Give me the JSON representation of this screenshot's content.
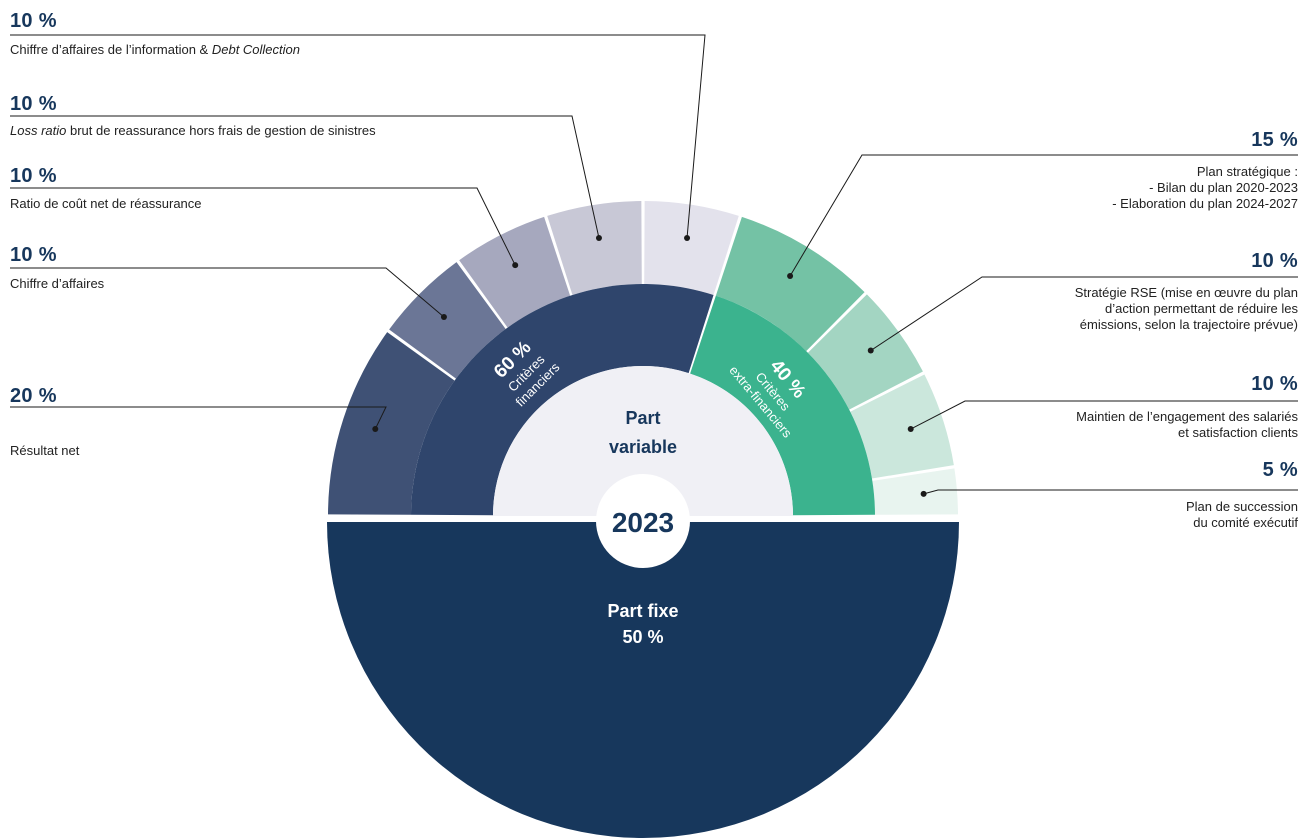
{
  "chart_data": {
    "type": "sunburst",
    "year": "2023",
    "center_label": [
      "Part",
      "variable"
    ],
    "fixed": {
      "label": "Part fixe",
      "value_label": "50 %",
      "value": 50,
      "color": "#17375c"
    },
    "groups": [
      {
        "pct_label": "60 %",
        "label": [
          "Critères",
          "financiers"
        ],
        "value": 60,
        "color": "#2f456c"
      },
      {
        "pct_label": "40 %",
        "label": [
          "Critères",
          "extra-financiers"
        ],
        "value": 40,
        "color": "#3bb38e"
      }
    ],
    "criteria": [
      {
        "group": 0,
        "value": 20,
        "pct_label": "20 %",
        "description": [
          "Résultat net"
        ],
        "color": "#3f5175"
      },
      {
        "group": 0,
        "value": 10,
        "pct_label": "10 %",
        "description": [
          "Chiffre d’affaires"
        ],
        "color": "#6b7696"
      },
      {
        "group": 0,
        "value": 10,
        "pct_label": "10 %",
        "description": [
          "Ratio de coût net de réassurance"
        ],
        "color": "#a6a8be"
      },
      {
        "group": 0,
        "value": 10,
        "pct_label": "10 %",
        "description_prefix_italic": "Loss ratio",
        "description": [
          " brut de reassurance hors frais de gestion de sinistres"
        ],
        "color": "#c8c8d6"
      },
      {
        "group": 0,
        "value": 10,
        "pct_label": "10 %",
        "description": [
          "Chiffre d’affaires de l’information & "
        ],
        "description_suffix_italic": "Debt Collection",
        "color": "#e3e2ec"
      },
      {
        "group": 1,
        "value": 15,
        "pct_label": "15 %",
        "description": [
          "Plan stratégique :",
          "- Bilan du plan 2020-2023",
          "- Elaboration du plan 2024-2027"
        ],
        "color": "#74c2a5"
      },
      {
        "group": 1,
        "value": 10,
        "pct_label": "10 %",
        "description": [
          "Stratégie RSE (mise en œuvre du plan",
          "d’action permettant de réduire les",
          "émissions, selon la trajectoire prévue)"
        ],
        "color": "#a3d5c2"
      },
      {
        "group": 1,
        "value": 10,
        "pct_label": "10 %",
        "description": [
          "Maintien de l’engagement des salariés",
          "et satisfaction clients"
        ],
        "color": "#cbe7dc"
      },
      {
        "group": 1,
        "value": 5,
        "pct_label": "5 %",
        "description": [
          "Plan de succession",
          "du comité exécutif"
        ],
        "color": "#e8f4ef"
      }
    ],
    "colors": {
      "fixed_inner_disc": "#f0f0f5",
      "line": "#1a1a1a",
      "label_white": "#ffffff"
    }
  }
}
